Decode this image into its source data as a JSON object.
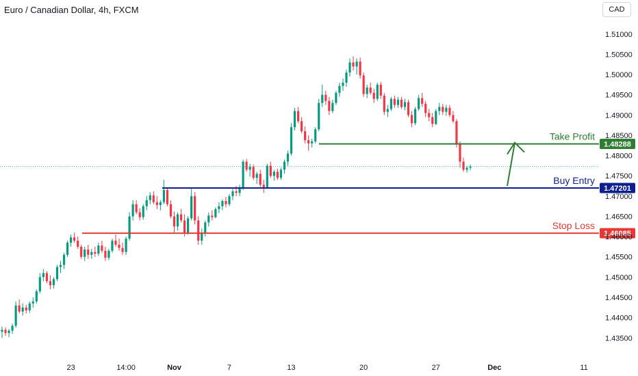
{
  "header": {
    "title": "Euro / Canadian Dollar, 4h, FXCM",
    "currency_button": "CAD"
  },
  "colors": {
    "up": "#089981",
    "down": "#f23645",
    "take_profit": "#2e7d32",
    "buy_entry": "#0d1f8f",
    "stop_loss": "#e53935",
    "current_price_line": "#26a69a"
  },
  "chart_data": {
    "type": "candlestick",
    "symbol": "Euro / Canadian Dollar",
    "interval": "4h",
    "source": "FXCM",
    "y_axis": {
      "range": [
        1.4315,
        1.5125
      ],
      "position": "right",
      "ticks": [
        "1.51000",
        "1.50500",
        "1.50000",
        "1.49500",
        "1.49000",
        "1.48500",
        "1.48000",
        "1.47500",
        "1.47000",
        "1.46500",
        "1.46000",
        "1.45500",
        "1.45000",
        "1.44500",
        "1.44000",
        "1.43500"
      ]
    },
    "x_axis": {
      "ticks": [
        {
          "label": "23",
          "bold": false
        },
        {
          "label": "14:00",
          "bold": false
        },
        {
          "label": "Nov",
          "bold": true
        },
        {
          "label": "7",
          "bold": false
        },
        {
          "label": "13",
          "bold": false
        },
        {
          "label": "20",
          "bold": false
        },
        {
          "label": "27",
          "bold": false
        },
        {
          "label": "Dec",
          "bold": true
        },
        {
          "label": "11",
          "bold": false
        }
      ]
    },
    "candles": [
      [
        1.4365,
        1.4378,
        1.435,
        1.437
      ],
      [
        1.437,
        1.4376,
        1.4355,
        1.4362
      ],
      [
        1.4362,
        1.4372,
        1.4352,
        1.4368
      ],
      [
        1.4368,
        1.4385,
        1.436,
        1.438
      ],
      [
        1.438,
        1.444,
        1.4375,
        1.443
      ],
      [
        1.443,
        1.4445,
        1.441,
        1.4415
      ],
      [
        1.4415,
        1.4435,
        1.4405,
        1.4425
      ],
      [
        1.4425,
        1.4432,
        1.441,
        1.4418
      ],
      [
        1.4418,
        1.444,
        1.4412,
        1.4435
      ],
      [
        1.4435,
        1.445,
        1.4425,
        1.444
      ],
      [
        1.444,
        1.447,
        1.4435,
        1.4465
      ],
      [
        1.4465,
        1.451,
        1.446,
        1.45
      ],
      [
        1.45,
        1.452,
        1.449,
        1.451
      ],
      [
        1.451,
        1.4515,
        1.4485,
        1.449
      ],
      [
        1.449,
        1.4505,
        1.447,
        1.448
      ],
      [
        1.448,
        1.45,
        1.4472,
        1.4495
      ],
      [
        1.4495,
        1.453,
        1.449,
        1.4525
      ],
      [
        1.4525,
        1.454,
        1.451,
        1.453
      ],
      [
        1.453,
        1.456,
        1.452,
        1.4555
      ],
      [
        1.4555,
        1.459,
        1.455,
        1.4585
      ],
      [
        1.4585,
        1.4605,
        1.4575,
        1.4598
      ],
      [
        1.4598,
        1.461,
        1.4585,
        1.459
      ],
      [
        1.459,
        1.46,
        1.457,
        1.4575
      ],
      [
        1.4575,
        1.458,
        1.4545,
        1.455
      ],
      [
        1.455,
        1.4575,
        1.454,
        1.4568
      ],
      [
        1.4568,
        1.458,
        1.4545,
        1.4555
      ],
      [
        1.4555,
        1.457,
        1.4545,
        1.4562
      ],
      [
        1.4562,
        1.4575,
        1.455,
        1.4558
      ],
      [
        1.4558,
        1.4585,
        1.4552,
        1.4578
      ],
      [
        1.4578,
        1.459,
        1.456,
        1.4565
      ],
      [
        1.4565,
        1.4575,
        1.454,
        1.4548
      ],
      [
        1.4548,
        1.457,
        1.4542,
        1.4565
      ],
      [
        1.4565,
        1.4595,
        1.456,
        1.459
      ],
      [
        1.459,
        1.4605,
        1.4575,
        1.458
      ],
      [
        1.458,
        1.4595,
        1.4565,
        1.4572
      ],
      [
        1.4572,
        1.4585,
        1.4555,
        1.4562
      ],
      [
        1.4562,
        1.46,
        1.4555,
        1.4595
      ],
      [
        1.4595,
        1.466,
        1.459,
        1.465
      ],
      [
        1.465,
        1.469,
        1.464,
        1.468
      ],
      [
        1.468,
        1.469,
        1.4655,
        1.466
      ],
      [
        1.466,
        1.467,
        1.464,
        1.4648
      ],
      [
        1.4648,
        1.468,
        1.4642,
        1.4675
      ],
      [
        1.4675,
        1.47,
        1.4665,
        1.469
      ],
      [
        1.469,
        1.471,
        1.468,
        1.4702
      ],
      [
        1.4702,
        1.4712,
        1.468,
        1.4685
      ],
      [
        1.4685,
        1.47,
        1.4668,
        1.4678
      ],
      [
        1.4678,
        1.469,
        1.4665,
        1.4685
      ],
      [
        1.4685,
        1.474,
        1.468,
        1.4715
      ],
      [
        1.4715,
        1.472,
        1.4675,
        1.468
      ],
      [
        1.468,
        1.469,
        1.4645,
        1.465
      ],
      [
        1.465,
        1.4662,
        1.461,
        1.4625
      ],
      [
        1.4625,
        1.466,
        1.4615,
        1.4655
      ],
      [
        1.4655,
        1.4668,
        1.4635,
        1.464
      ],
      [
        1.464,
        1.4655,
        1.46,
        1.461
      ],
      [
        1.461,
        1.465,
        1.4605,
        1.4645
      ],
      [
        1.4645,
        1.472,
        1.464,
        1.47
      ],
      [
        1.47,
        1.471,
        1.463,
        1.464
      ],
      [
        1.464,
        1.465,
        1.458,
        1.459
      ],
      [
        1.459,
        1.462,
        1.458,
        1.461
      ],
      [
        1.461,
        1.464,
        1.46,
        1.4635
      ],
      [
        1.4635,
        1.466,
        1.4625,
        1.4652
      ],
      [
        1.4652,
        1.4665,
        1.464,
        1.4648
      ],
      [
        1.4648,
        1.4672,
        1.4645,
        1.4668
      ],
      [
        1.4668,
        1.4685,
        1.4658,
        1.4675
      ],
      [
        1.4675,
        1.4692,
        1.4665,
        1.4688
      ],
      [
        1.4688,
        1.4698,
        1.4672,
        1.468
      ],
      [
        1.468,
        1.4705,
        1.4675,
        1.47
      ],
      [
        1.47,
        1.4718,
        1.469,
        1.4712
      ],
      [
        1.4712,
        1.4725,
        1.47,
        1.4708
      ],
      [
        1.4708,
        1.4728,
        1.47,
        1.472
      ],
      [
        1.472,
        1.479,
        1.4715,
        1.4785
      ],
      [
        1.4785,
        1.4792,
        1.476,
        1.4765
      ],
      [
        1.4765,
        1.478,
        1.4748,
        1.4772
      ],
      [
        1.4772,
        1.4778,
        1.474,
        1.4745
      ],
      [
        1.4745,
        1.476,
        1.473,
        1.4755
      ],
      [
        1.4755,
        1.4765,
        1.4722,
        1.4728
      ],
      [
        1.4728,
        1.474,
        1.4708,
        1.4722
      ],
      [
        1.4722,
        1.478,
        1.4718,
        1.4775
      ],
      [
        1.4775,
        1.4785,
        1.4745,
        1.475
      ],
      [
        1.475,
        1.4765,
        1.4738,
        1.476
      ],
      [
        1.476,
        1.4768,
        1.474,
        1.4745
      ],
      [
        1.4745,
        1.477,
        1.474,
        1.4765
      ],
      [
        1.4765,
        1.479,
        1.4755,
        1.4785
      ],
      [
        1.4785,
        1.4812,
        1.4775,
        1.4805
      ],
      [
        1.4805,
        1.488,
        1.48,
        1.487
      ],
      [
        1.487,
        1.4918,
        1.4862,
        1.491
      ],
      [
        1.491,
        1.492,
        1.488,
        1.4885
      ],
      [
        1.4885,
        1.4895,
        1.4855,
        1.486
      ],
      [
        1.486,
        1.4872,
        1.483,
        1.4838
      ],
      [
        1.4838,
        1.485,
        1.4812,
        1.483
      ],
      [
        1.483,
        1.4842,
        1.482,
        1.4835
      ],
      [
        1.4835,
        1.487,
        1.483,
        1.4865
      ],
      [
        1.4865,
        1.494,
        1.486,
        1.493
      ],
      [
        1.493,
        1.4975,
        1.492,
        1.495
      ],
      [
        1.495,
        1.496,
        1.4925,
        1.4935
      ],
      [
        1.4935,
        1.4945,
        1.49,
        1.491
      ],
      [
        1.491,
        1.4938,
        1.4905,
        1.493
      ],
      [
        1.493,
        1.496,
        1.4925,
        1.4955
      ],
      [
        1.4955,
        1.498,
        1.4945,
        1.4972
      ],
      [
        1.4972,
        1.499,
        1.496,
        1.498
      ],
      [
        1.498,
        1.5012,
        1.497,
        1.5005
      ],
      [
        1.5005,
        1.504,
        1.4995,
        1.503
      ],
      [
        1.503,
        1.5045,
        1.501,
        1.502
      ],
      [
        1.502,
        1.504,
        1.5,
        1.5032
      ],
      [
        1.5032,
        1.5042,
        1.499,
        1.4998
      ],
      [
        1.4998,
        1.5005,
        1.4945,
        1.4952
      ],
      [
        1.4952,
        1.4975,
        1.4942,
        1.4968
      ],
      [
        1.4968,
        1.498,
        1.495,
        1.4955
      ],
      [
        1.4955,
        1.4965,
        1.493,
        1.494
      ],
      [
        1.494,
        1.498,
        1.4935,
        1.4975
      ],
      [
        1.4975,
        1.4982,
        1.494,
        1.4948
      ],
      [
        1.4948,
        1.4955,
        1.49,
        1.4908
      ],
      [
        1.4908,
        1.4925,
        1.4895,
        1.4915
      ],
      [
        1.4915,
        1.4945,
        1.491,
        1.494
      ],
      [
        1.494,
        1.4948,
        1.4918,
        1.4925
      ],
      [
        1.4925,
        1.4945,
        1.4918,
        1.4938
      ],
      [
        1.4938,
        1.4945,
        1.4915,
        1.492
      ],
      [
        1.492,
        1.494,
        1.4912,
        1.4932
      ],
      [
        1.4932,
        1.4938,
        1.4895,
        1.49
      ],
      [
        1.49,
        1.491,
        1.487,
        1.488
      ],
      [
        1.488,
        1.492,
        1.4875,
        1.4915
      ],
      [
        1.4915,
        1.495,
        1.491,
        1.4942
      ],
      [
        1.4942,
        1.4955,
        1.492,
        1.4928
      ],
      [
        1.4928,
        1.4935,
        1.4895,
        1.4905
      ],
      [
        1.4905,
        1.4915,
        1.4885,
        1.4895
      ],
      [
        1.4895,
        1.4905,
        1.487,
        1.4878
      ],
      [
        1.4878,
        1.4915,
        1.4875,
        1.491
      ],
      [
        1.491,
        1.493,
        1.49,
        1.492
      ],
      [
        1.492,
        1.4928,
        1.49,
        1.4908
      ],
      [
        1.4908,
        1.4925,
        1.4898,
        1.4918
      ],
      [
        1.4918,
        1.4925,
        1.4895,
        1.49
      ],
      [
        1.49,
        1.491,
        1.488,
        1.4885
      ],
      [
        1.4885,
        1.489,
        1.482,
        1.483
      ],
      [
        1.483,
        1.4835,
        1.477,
        1.4785
      ],
      [
        1.4785,
        1.4795,
        1.476,
        1.4765
      ],
      [
        1.4765,
        1.4775,
        1.4758,
        1.477
      ],
      [
        1.477,
        1.4778,
        1.4764,
        1.4773
      ]
    ]
  },
  "levels": {
    "take_profit": {
      "label": "Take Profit",
      "price": "1.48288"
    },
    "buy_entry": {
      "label": "Buy Entry",
      "price": "1.47201"
    },
    "stop_loss": {
      "label": "Stop Loss",
      "price": "1.46085"
    },
    "current_price": "1.47730"
  }
}
